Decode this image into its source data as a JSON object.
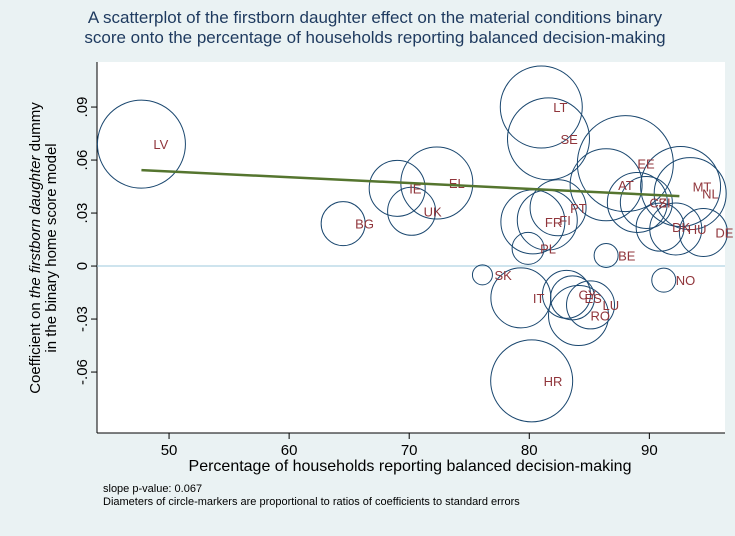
{
  "chart_data": {
    "type": "scatter",
    "title": [
      "A scatterplot of the firstborn daughter effect on the material conditions binary",
      "score onto the percentage of households reporting balanced decision-making"
    ],
    "x_label": "Percentage of households reporting balanced decision-making",
    "y_label": {
      "line1": {
        "before": "Coefficient on ",
        "italic": "the firstborn daughter",
        "after": " dummy"
      },
      "line2": "in the binary home score model"
    },
    "notes": [
      "slope p-value: 0.067",
      "Diameters of circle-markers are proportional to ratios of coefficients to standard errors"
    ],
    "xlim": [
      44,
      96.3
    ],
    "ylim": [
      -0.0945,
      0.1155
    ],
    "xticks": [
      50,
      60,
      70,
      80,
      90
    ],
    "yticks": [
      {
        "value": -0.06,
        "label": "-.06"
      },
      {
        "value": -0.03,
        "label": "-.03"
      },
      0,
      {
        "value": 0.03,
        "label": ".03"
      },
      {
        "value": 0.06,
        "label": ".06"
      },
      {
        "value": 0.09,
        "label": ".09"
      }
    ],
    "reference_line": 0,
    "marker_color": "#1a476f",
    "label_color": "#90353b",
    "labels": [
      "LV",
      "BG",
      "IE",
      "UK",
      "EL",
      "SK",
      "HR",
      "IT",
      "FR",
      "FI",
      "PL",
      "LT",
      "SE",
      "PT",
      "CY",
      "ES",
      "LU",
      "RO",
      "BE",
      "AT",
      "EE",
      "CZ",
      "SI",
      "DK",
      "HU",
      "MT",
      "NL",
      "DE",
      "NO"
    ],
    "x": [
      47.7,
      64.5,
      69.0,
      70.2,
      72.3,
      76.1,
      80.2,
      79.3,
      80.3,
      81.5,
      79.9,
      81.0,
      81.6,
      82.4,
      83.1,
      83.6,
      85.1,
      84.1,
      86.4,
      86.4,
      88.0,
      89.0,
      89.75,
      90.9,
      92.2,
      92.6,
      93.4,
      94.5,
      91.2
    ],
    "y": [
      0.069,
      0.024,
      0.044,
      0.031,
      0.047,
      -0.005,
      -0.065,
      -0.018,
      0.025,
      0.026,
      0.01,
      0.09,
      0.072,
      0.033,
      -0.016,
      -0.018,
      -0.022,
      -0.028,
      0.006,
      0.046,
      0.058,
      0.036,
      0.036,
      0.022,
      0.021,
      0.045,
      0.041,
      0.019,
      -0.008
    ],
    "marker_sizes": [
      88,
      44,
      56,
      48,
      72,
      20,
      82,
      60,
      64,
      60,
      32,
      82,
      82,
      56,
      48,
      44,
      48,
      60,
      24,
      72,
      96,
      60,
      52,
      48,
      52,
      80,
      72,
      48,
      24
    ],
    "fit": {
      "color": "#55752f",
      "x": [
        47.7,
        92.5
      ],
      "y": [
        0.0543,
        0.0396
      ]
    }
  }
}
